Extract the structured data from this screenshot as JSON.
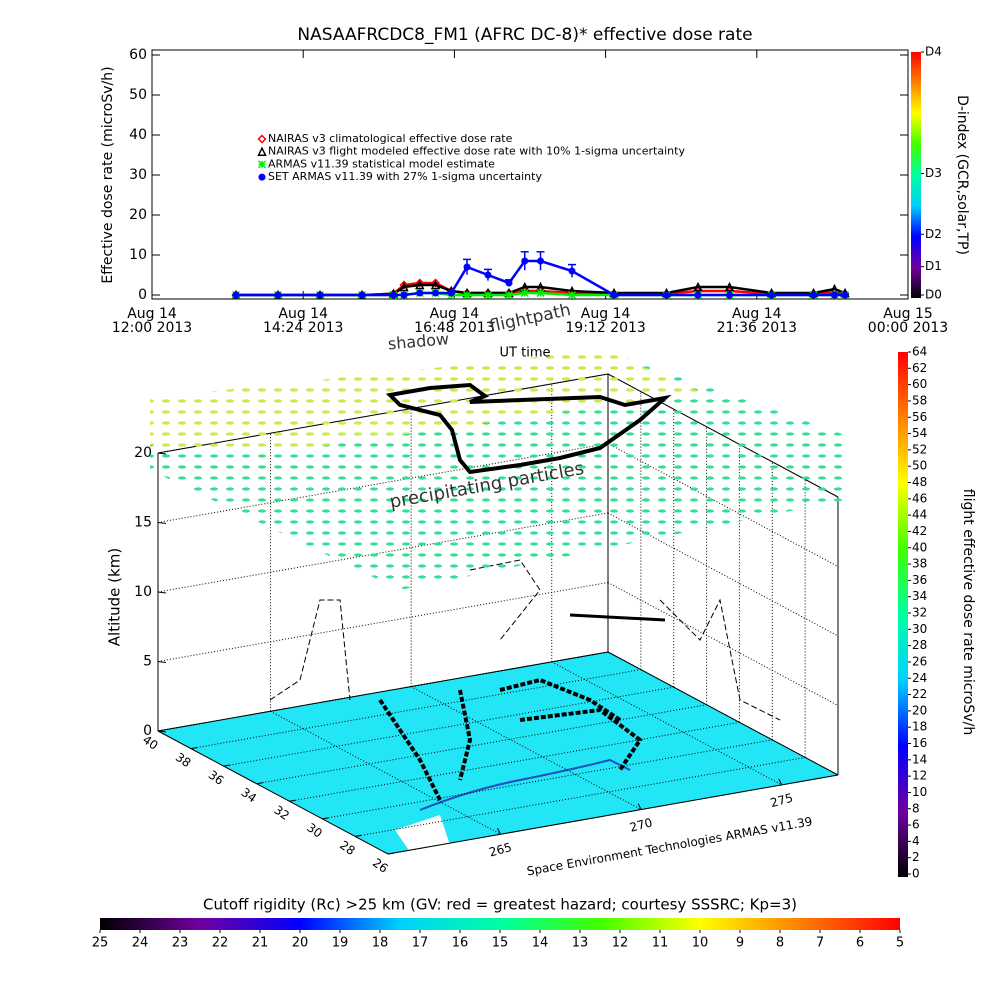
{
  "chart_data": [
    {
      "type": "timeseries",
      "title": "NASAAFRCDC8_FM1 (AFRC DC-8)* effective dose rate",
      "x_label": "UT time",
      "y_label": "Effective dose rate (microSv/h)",
      "xlim": [
        "2013-08-14T12:00",
        "2013-08-15T00:00"
      ],
      "xticks": [
        {
          "value": "2013-08-14T12:00",
          "label": [
            "Aug 14",
            "12:00 2013"
          ]
        },
        {
          "value": "2013-08-14T14:24",
          "label": [
            "Aug 14",
            "14:24 2013"
          ]
        },
        {
          "value": "2013-08-14T16:48",
          "label": [
            "Aug 14",
            "16:48 2013"
          ]
        },
        {
          "value": "2013-08-14T19:12",
          "label": [
            "Aug 14",
            "19:12 2013"
          ]
        },
        {
          "value": "2013-08-14T21:36",
          "label": [
            "Aug 14",
            "21:36 2013"
          ]
        },
        {
          "value": "2013-08-15T00:00",
          "label": [
            "Aug 15",
            "00:00 2013"
          ]
        }
      ],
      "ylim": [
        0,
        60
      ],
      "yticks": [
        0,
        10,
        20,
        30,
        40,
        50,
        60
      ],
      "legend": "upper left",
      "x": [
        "2013-08-14T13:20",
        "2013-08-14T14:00",
        "2013-08-14T14:40",
        "2013-08-14T15:20",
        "2013-08-14T15:50",
        "2013-08-14T16:00",
        "2013-08-14T16:15",
        "2013-08-14T16:30",
        "2013-08-14T16:45",
        "2013-08-14T17:00",
        "2013-08-14T17:20",
        "2013-08-14T17:40",
        "2013-08-14T17:55",
        "2013-08-14T18:10",
        "2013-08-14T18:40",
        "2013-08-14T19:20",
        "2013-08-14T20:10",
        "2013-08-14T20:40",
        "2013-08-14T21:10",
        "2013-08-14T21:50",
        "2013-08-14T22:30",
        "2013-08-14T22:50",
        "2013-08-14T23:00"
      ],
      "series": [
        {
          "name": "NAIRAS v3 climatological effective dose rate",
          "color": "#ff0000",
          "marker": "diamond",
          "values": [
            0,
            0,
            0,
            0,
            0.3,
            2.5,
            3,
            3,
            1,
            0.5,
            0.5,
            0.5,
            1,
            1,
            0.5,
            0.3,
            0.3,
            1,
            1,
            0.3,
            0.3,
            0.7,
            0.3
          ]
        },
        {
          "name": "NAIRAS v3 flight modeled effective dose rate with 10% 1-sigma uncertainty",
          "color": "#000000",
          "marker": "triangle",
          "values": [
            0,
            0,
            0,
            0,
            0.3,
            2,
            2.5,
            2.5,
            1,
            0.5,
            0.5,
            0.5,
            2,
            2,
            1,
            0.5,
            0.5,
            2,
            2,
            0.5,
            0.5,
            1.5,
            0.5
          ]
        },
        {
          "name": "ARMAS v11.39 statistical model estimate",
          "color": "#00ee00",
          "marker": "asterisk",
          "values": [
            0,
            0,
            0,
            0,
            0,
            0,
            0.5,
            0.5,
            0,
            0,
            0,
            0,
            0.5,
            0.5,
            0,
            0,
            0,
            0,
            0,
            0,
            0,
            0,
            0
          ]
        },
        {
          "name": "SET ARMAS v11.39 with 27% 1-sigma uncertainty",
          "color": "#0000ff",
          "marker": "circle",
          "values": [
            0,
            0,
            0,
            0,
            0,
            0,
            0.5,
            0.5,
            0.5,
            7,
            5,
            3,
            8.5,
            8.5,
            6,
            0,
            0,
            0,
            0,
            0,
            0,
            0,
            0
          ],
          "errors": [
            0,
            0,
            0,
            0,
            0,
            0,
            0.1,
            0.1,
            0.1,
            1.9,
            1.4,
            0.8,
            2.3,
            2.3,
            1.6,
            0,
            0,
            0,
            0,
            0,
            0,
            0,
            0
          ]
        }
      ]
    },
    {
      "type": "colorbar",
      "orientation": "vertical",
      "title": "D-index (GCR,solar,TP)",
      "ylim": [
        0,
        60
      ],
      "yticks": [
        {
          "value": 0,
          "label": "D0"
        },
        {
          "value": 7,
          "label": "D1"
        },
        {
          "value": 15,
          "label": "D2"
        },
        {
          "value": 30,
          "label": "D3"
        },
        {
          "value": 60,
          "label": "D4"
        }
      ],
      "colors": [
        "#000000",
        "#7000a0",
        "#0000ff",
        "#00d0ff",
        "#00ffa0",
        "#40ff00",
        "#ffff00",
        "#ff8000",
        "#ff0000"
      ]
    },
    {
      "type": "surface3d",
      "z_label": "Altitude (km)",
      "zlim": [
        0,
        20
      ],
      "zticks": [
        0,
        5,
        10,
        15,
        20
      ],
      "latlim": [
        40,
        26
      ],
      "latticks": [
        40,
        38,
        36,
        34,
        32,
        30,
        28,
        26
      ],
      "lonlim": [
        261,
        277
      ],
      "lonticks": [
        265,
        270,
        275
      ],
      "annotations": [
        "shadow",
        "flightpath",
        "precipitating particles"
      ],
      "credit": "Space Environment Technologies ARMAS v11.39"
    },
    {
      "type": "colorbar",
      "orientation": "vertical",
      "title": "flight effective dose rate microSv/h",
      "ylim": [
        0,
        64
      ],
      "yticks": [
        0,
        2,
        4,
        6,
        8,
        10,
        12,
        14,
        16,
        18,
        20,
        22,
        24,
        26,
        28,
        30,
        32,
        34,
        36,
        38,
        40,
        42,
        44,
        46,
        48,
        50,
        52,
        54,
        56,
        58,
        60,
        62,
        64
      ],
      "colors": [
        "#000000",
        "#7000a0",
        "#0000ff",
        "#00d0ff",
        "#00ffa0",
        "#40ff00",
        "#ffff00",
        "#ff8000",
        "#ff0000"
      ]
    },
    {
      "type": "colorbar",
      "orientation": "horizontal",
      "title": "Cutoff rigidity (Rc) >25 km (GV: red = greatest hazard; courtesy SSSRC; Kp=3)",
      "xlim": [
        25,
        5
      ],
      "xticks": [
        25,
        24,
        23,
        22,
        21,
        20,
        19,
        18,
        17,
        16,
        15,
        14,
        13,
        12,
        11,
        10,
        9,
        8,
        7,
        6,
        5
      ],
      "colors": [
        "#000000",
        "#7000a0",
        "#0000ff",
        "#00d0ff",
        "#00ffa0",
        "#40ff00",
        "#ffff00",
        "#ff8000",
        "#ff0000"
      ]
    }
  ]
}
